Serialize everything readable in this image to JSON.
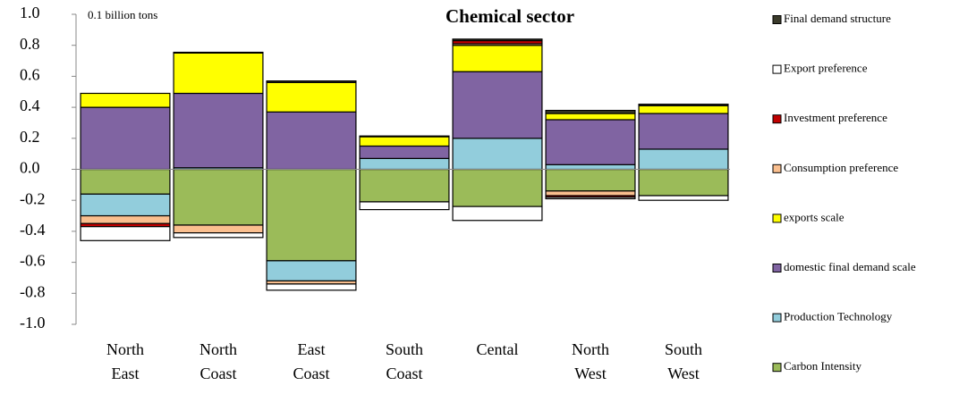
{
  "chart_data": {
    "type": "stacked_bar",
    "title": "Chemical  sector",
    "y_unit": "0.1 billion tons",
    "categories": [
      "North East",
      "North Coast",
      "East Coast",
      "South Coast",
      "Cental",
      "North West",
      "South West"
    ],
    "series": [
      {
        "name": "Carbon Intensity",
        "color": "#9bbb59",
        "values": [
          -0.16,
          -0.36,
          -0.59,
          -0.21,
          -0.24,
          -0.14,
          -0.17
        ]
      },
      {
        "name": "Production Technology",
        "color": "#92cddc",
        "values": [
          -0.14,
          0.01,
          -0.13,
          0.07,
          0.2,
          0.03,
          0.13
        ]
      },
      {
        "name": "domestic final demand scale",
        "color": "#8064a2",
        "values": [
          0.4,
          0.48,
          0.37,
          0.08,
          0.43,
          0.29,
          0.23
        ]
      },
      {
        "name": "exports scale",
        "color": "#ffff00",
        "values": [
          0.09,
          0.26,
          0.19,
          0.06,
          0.17,
          0.04,
          0.05
        ]
      },
      {
        "name": "Consumption preference",
        "color": "#fabf8f",
        "values": [
          -0.05,
          -0.05,
          -0.02,
          0,
          0.01,
          -0.03,
          0
        ]
      },
      {
        "name": "Investment preference",
        "color": "#c00000",
        "values": [
          -0.02,
          0,
          0,
          0,
          0.02,
          -0.01,
          0
        ]
      },
      {
        "name": "Export preference",
        "color": "#ffffff",
        "values": [
          -0.09,
          -0.03,
          -0.04,
          -0.05,
          -0.09,
          -0.01,
          -0.03
        ]
      },
      {
        "name": "Final demand structure",
        "color": "#3b3b2b",
        "values": [
          0,
          0.005,
          0.01,
          0.005,
          0.01,
          0.02,
          0.01
        ]
      }
    ],
    "ylim": [
      -1.0,
      1.0
    ],
    "yticks": [
      {
        "value": -1.0,
        "label": "-1.0"
      },
      -0.8,
      -0.6,
      -0.4,
      -0.2,
      {
        "value": 0,
        "label": "0.0"
      },
      0.2,
      0.4,
      0.6,
      0.8,
      {
        "value": 1.0,
        "label": "1.0"
      }
    ],
    "legend": "right",
    "grid": false
  }
}
